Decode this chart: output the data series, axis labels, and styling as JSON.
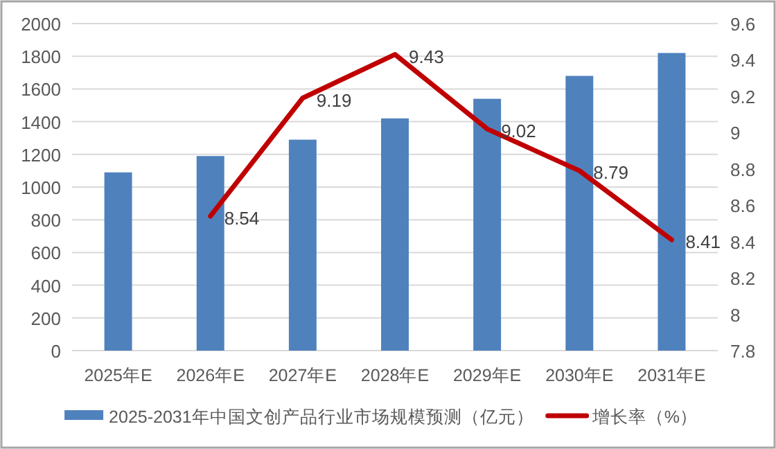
{
  "chart_data": {
    "type": "bar",
    "categories": [
      "2025年E",
      "2026年E",
      "2027年E",
      "2028年E",
      "2029年E",
      "2030年E",
      "2031年E"
    ],
    "series": [
      {
        "name": "2025-2031年中国文创产品行业市场规模预测（亿元）",
        "color": "#4f81bd",
        "values": [
          1090,
          1190,
          1290,
          1420,
          1540,
          1680,
          1820
        ]
      },
      {
        "name": "增长率（%）",
        "type": "line",
        "axis": "y2",
        "color": "#c00000",
        "values": [
          null,
          8.54,
          9.19,
          9.43,
          9.02,
          8.79,
          8.41
        ],
        "value_labels": [
          null,
          "8.54",
          "9.19",
          "9.43",
          "9.02",
          "8.79",
          "8.41"
        ]
      }
    ],
    "ylim": [
      0,
      2000
    ],
    "yticks": [
      0,
      200,
      400,
      600,
      800,
      1000,
      1200,
      1400,
      1600,
      1800,
      2000
    ],
    "y2lim": [
      7.8,
      9.6
    ],
    "y2ticks": [
      7.8,
      8,
      8.2,
      8.4,
      8.6,
      8.8,
      9,
      9.2,
      9.4,
      9.6
    ],
    "grid": "y",
    "legend": "bottom",
    "marker": "none",
    "line_style": "solid"
  }
}
